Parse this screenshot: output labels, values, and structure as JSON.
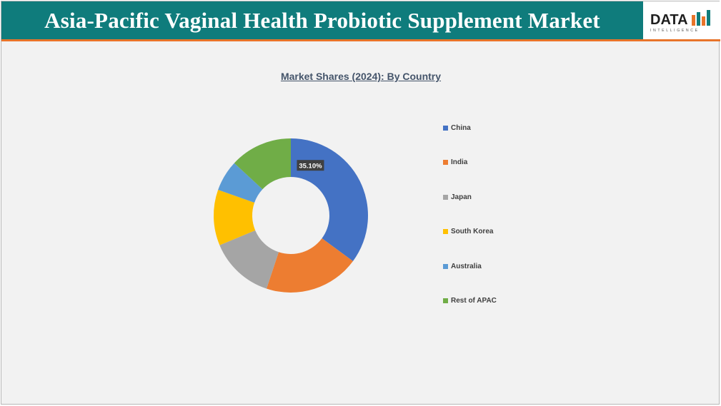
{
  "header": {
    "title": "Asia-Pacific Vaginal Health Probiotic Supplement Market"
  },
  "logo": {
    "word": "DATA",
    "tagline": "INTELLIGENCE",
    "colors": {
      "text": "#1f1f1f",
      "bar_orange": "#e8742a",
      "bar_teal": "#0f7c7c"
    }
  },
  "theme": {
    "header_bg": "#0f7c7c",
    "header_border": "#e8742a",
    "panel_bg": "#f2f2f2"
  },
  "chart_data": {
    "type": "pie",
    "variant": "donut",
    "title": "Market Shares (2024): By Country",
    "categories": [
      "China",
      "India",
      "Japan",
      "South Korea",
      "Australia",
      "Rest of APAC"
    ],
    "values": [
      35.1,
      20.0,
      13.6,
      11.7,
      6.5,
      13.1
    ],
    "colors": [
      "#4472c4",
      "#ed7d31",
      "#a5a5a5",
      "#ffc000",
      "#5b9bd5",
      "#70ad47"
    ],
    "data_labels": [
      {
        "category": "China",
        "text": "35.10%"
      }
    ],
    "legend_position": "right"
  }
}
